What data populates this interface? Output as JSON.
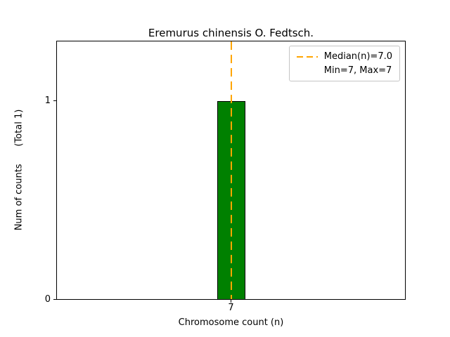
{
  "chart_data": {
    "type": "bar",
    "title": "Eremurus chinensis O. Fedtsch.",
    "xlabel": "Chromosome count (n)",
    "ylabel": "Num of counts      (Total 1)",
    "categories": [
      "7"
    ],
    "values": [
      1
    ],
    "ylim": [
      0,
      1.3
    ],
    "yticks": [
      "0",
      "1"
    ],
    "grid": "off",
    "bar_color": "#008000",
    "bar_edge_color": "#000000",
    "median_line": {
      "x": 7,
      "color": "#FFA500",
      "style": "dashed"
    },
    "legend": {
      "position": "top-right",
      "entries": [
        {
          "label": "Median(n)=7.0",
          "marker": "dashed-line",
          "color": "#FFA500"
        },
        {
          "label": "Min=7, Max=7",
          "marker": "none",
          "color": ""
        }
      ]
    }
  }
}
